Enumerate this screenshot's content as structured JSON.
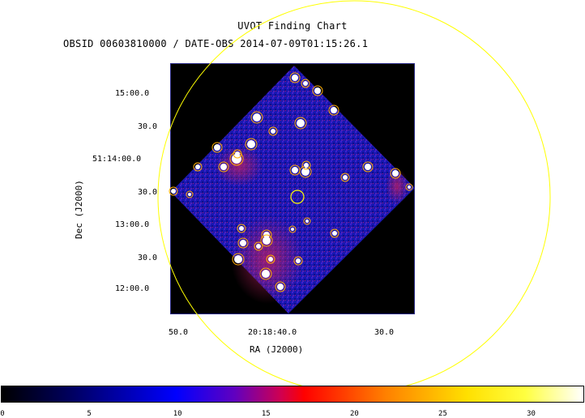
{
  "header": {
    "title": "UVOT Finding Chart",
    "subtitle": "OBSID 00603810000 / DATE-OBS 2014-07-09T01:15:26.1"
  },
  "axes": {
    "dec_label": "Dec (J2000)",
    "ra_label": "RA (J2000)",
    "dec_ticks": [
      "15:00.0",
      "30.0",
      "51:14:00.0",
      "30.0",
      "13:00.0",
      "30.0",
      "12:00.0"
    ],
    "ra_ticks": [
      "50.0",
      "20:18:40.0",
      "30.0"
    ]
  },
  "colors": {
    "field_circle": "#ffff00",
    "target_circle": "#ffff00",
    "background": "#000000",
    "image_noise": "#2020c0"
  },
  "colorbar": {
    "ticks": [
      "0",
      "5",
      "10",
      "15",
      "20",
      "25",
      "30"
    ],
    "values": [
      0,
      5,
      10,
      15,
      20,
      25,
      30
    ],
    "max": 33
  }
}
